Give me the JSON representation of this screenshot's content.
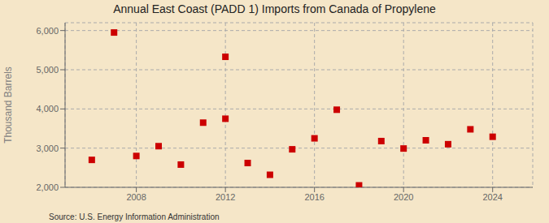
{
  "chart_data": {
    "type": "scatter",
    "title": "Annual East Coast (PADD 1) Imports from Canada of Propylene",
    "y_label": "Thousand Barrels",
    "annotations": [
      "Source: U.S. Energy Information Administration"
    ],
    "x": [
      2006,
      2007,
      2008,
      2009,
      2010,
      2011,
      2012,
      2012,
      2013,
      2014,
      2015,
      2016,
      2017,
      2018,
      2019,
      2020,
      2021,
      2022,
      2023,
      2024
    ],
    "values": [
      2700,
      5950,
      2800,
      3050,
      2580,
      3650,
      3750,
      5330,
      2620,
      2320,
      2970,
      3250,
      3980,
      2050,
      3180,
      2990,
      3200,
      3100,
      3480,
      3290
    ],
    "color": "#cc0000",
    "marker": "square",
    "xlim": [
      2004.8,
      2025.8
    ],
    "xticks": [
      2008,
      2012,
      2016,
      2020,
      2024
    ],
    "ylim": [
      2000,
      6200
    ],
    "yticks": [
      {
        "value": 2000,
        "label": "2,000"
      },
      {
        "value": 3000,
        "label": "3,000"
      },
      {
        "value": 4000,
        "label": "4,000"
      },
      {
        "value": 5000,
        "label": "5,000"
      },
      {
        "value": 6000,
        "label": "6,000"
      }
    ],
    "grid": true
  }
}
